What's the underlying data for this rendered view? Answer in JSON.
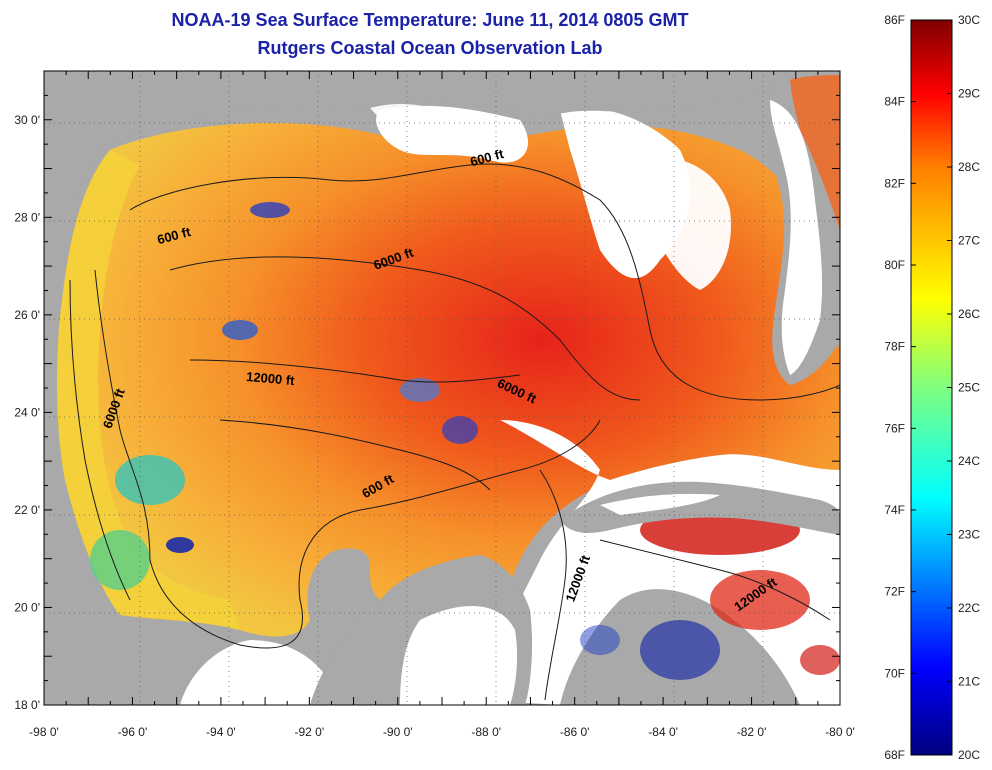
{
  "title": "NOAA-19 Sea Surface Temperature:  June 11, 2014 0805 GMT",
  "subtitle": "Rutgers Coastal Ocean Observation Lab",
  "axes": {
    "lon_labels": [
      "-98 0'",
      "-96 0'",
      "-94 0'",
      "-92 0'",
      "-90 0'",
      "-88 0'",
      "-86 0'",
      "-84 0'",
      "-82 0'",
      "-80 0'"
    ],
    "lat_labels": [
      "30 0'",
      "28 0'",
      "26 0'",
      "24 0'",
      "22 0'",
      "20 0'",
      "18 0'"
    ],
    "lon_range": [
      -98,
      -80
    ],
    "lat_range": [
      18,
      31
    ]
  },
  "colorbar": {
    "fahrenheit": [
      "86F",
      "84F",
      "82F",
      "80F",
      "78F",
      "76F",
      "74F",
      "72F",
      "70F",
      "68F"
    ],
    "celsius": [
      "30C",
      "29C",
      "28C",
      "27C",
      "26C",
      "25C",
      "24C",
      "23C",
      "22C",
      "21C",
      "20C"
    ],
    "range_c": [
      20,
      30
    ]
  },
  "contours": [
    {
      "text": "600 ft"
    },
    {
      "text": "6000 ft"
    },
    {
      "text": "12000 ft"
    },
    {
      "text": "6000 ft"
    },
    {
      "text": "6000 ft"
    },
    {
      "text": "600 ft"
    },
    {
      "text": "600 ft"
    },
    {
      "text": "12000 ft"
    },
    {
      "text": "12000 ft"
    }
  ],
  "colors": {
    "land": "#a9a9a9",
    "cloud": "#ffffff",
    "title": "#1a22a8"
  }
}
